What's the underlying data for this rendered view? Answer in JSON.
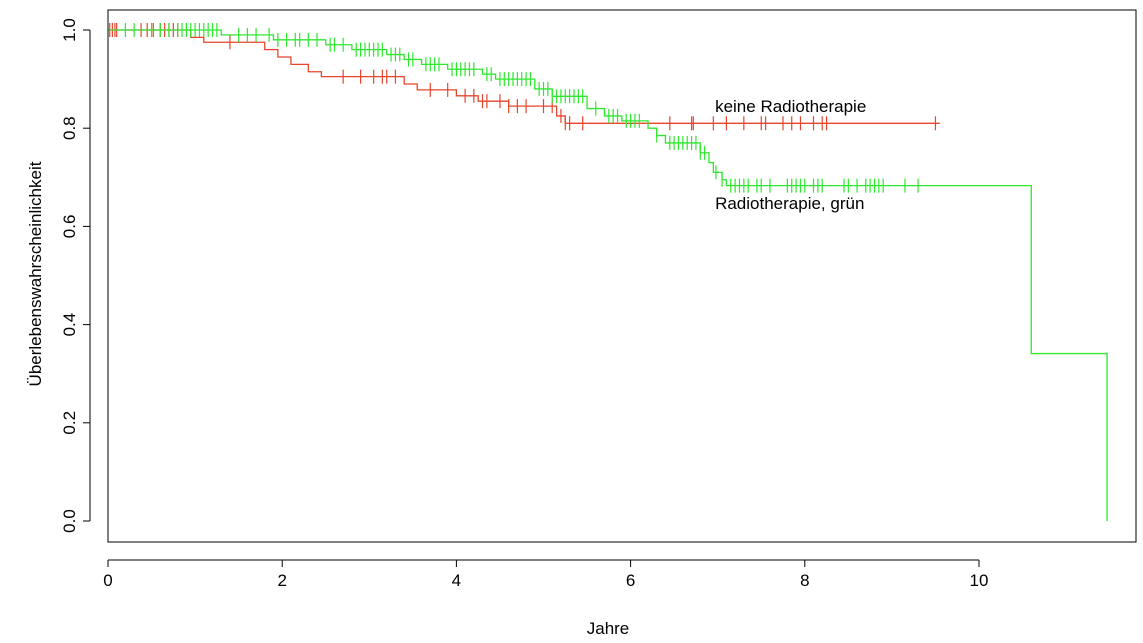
{
  "chart_data": {
    "type": "line",
    "title": "",
    "xlabel": "Jahre",
    "ylabel": "Überlebenswahrscheinlichkeit",
    "xlim": [
      0,
      11.7
    ],
    "ylim": [
      0,
      1.0
    ],
    "xticks": [
      0,
      2,
      4,
      6,
      8,
      10
    ],
    "xtick_labels": [
      "0",
      "2",
      "4",
      "6",
      "8",
      "10"
    ],
    "yticks": [
      0.0,
      0.2,
      0.4,
      0.6,
      0.8,
      1.0
    ],
    "ytick_labels": [
      "0.0",
      "0.2",
      "0.4",
      "0.6",
      "0.8",
      "1.0"
    ],
    "grid": false,
    "annotations": [
      {
        "text": "keine Radiotherapie",
        "x": 6.97,
        "y": 0.845
      },
      {
        "text": "Radiotherapie, grün",
        "x": 6.97,
        "y": 0.648
      }
    ],
    "series": [
      {
        "color": "#e8452c",
        "step": [
          [
            0,
            1.0
          ],
          [
            0.95,
            1.0
          ],
          [
            0.95,
            0.985
          ],
          [
            1.1,
            0.985
          ],
          [
            1.1,
            0.975
          ],
          [
            1.8,
            0.975
          ],
          [
            1.8,
            0.96
          ],
          [
            1.95,
            0.96
          ],
          [
            1.95,
            0.945
          ],
          [
            2.1,
            0.945
          ],
          [
            2.1,
            0.93
          ],
          [
            2.3,
            0.93
          ],
          [
            2.3,
            0.915
          ],
          [
            2.45,
            0.915
          ],
          [
            2.45,
            0.905
          ],
          [
            3.4,
            0.905
          ],
          [
            3.4,
            0.89
          ],
          [
            3.55,
            0.89
          ],
          [
            3.55,
            0.878
          ],
          [
            4.0,
            0.878
          ],
          [
            4.0,
            0.866
          ],
          [
            4.25,
            0.866
          ],
          [
            4.25,
            0.855
          ],
          [
            4.6,
            0.855
          ],
          [
            4.6,
            0.845
          ],
          [
            5.15,
            0.845
          ],
          [
            5.15,
            0.825
          ],
          [
            5.25,
            0.825
          ],
          [
            5.25,
            0.81
          ],
          [
            9.55,
            0.81
          ]
        ],
        "censor_x": [
          0.02,
          0.05,
          0.08,
          0.1,
          0.38,
          0.45,
          0.52,
          0.6,
          0.65,
          0.7,
          0.75,
          0.8,
          1.4,
          2.7,
          2.9,
          3.05,
          3.15,
          3.2,
          3.3,
          3.7,
          3.9,
          4.1,
          4.2,
          4.3,
          4.35,
          4.5,
          4.6,
          4.7,
          4.8,
          5.0,
          5.1,
          5.2,
          5.25,
          5.3,
          5.45,
          6.45,
          6.7,
          6.72,
          6.95,
          7.1,
          7.3,
          7.5,
          7.55,
          7.75,
          7.85,
          7.95,
          8.1,
          8.2,
          8.25,
          9.5
        ]
      },
      {
        "color": "#2ee82e",
        "step": [
          [
            0,
            1.0
          ],
          [
            1.3,
            1.0
          ],
          [
            1.3,
            0.99
          ],
          [
            1.9,
            0.99
          ],
          [
            1.9,
            0.98
          ],
          [
            2.5,
            0.98
          ],
          [
            2.5,
            0.97
          ],
          [
            2.8,
            0.97
          ],
          [
            2.8,
            0.96
          ],
          [
            3.2,
            0.96
          ],
          [
            3.2,
            0.95
          ],
          [
            3.4,
            0.95
          ],
          [
            3.4,
            0.94
          ],
          [
            3.6,
            0.94
          ],
          [
            3.6,
            0.93
          ],
          [
            3.9,
            0.93
          ],
          [
            3.9,
            0.92
          ],
          [
            4.3,
            0.92
          ],
          [
            4.3,
            0.91
          ],
          [
            4.45,
            0.91
          ],
          [
            4.45,
            0.9
          ],
          [
            4.9,
            0.9
          ],
          [
            4.9,
            0.88
          ],
          [
            5.1,
            0.88
          ],
          [
            5.1,
            0.865
          ],
          [
            5.5,
            0.865
          ],
          [
            5.5,
            0.84
          ],
          [
            5.7,
            0.84
          ],
          [
            5.7,
            0.825
          ],
          [
            5.9,
            0.825
          ],
          [
            5.9,
            0.815
          ],
          [
            6.2,
            0.815
          ],
          [
            6.2,
            0.8
          ],
          [
            6.3,
            0.8
          ],
          [
            6.3,
            0.785
          ],
          [
            6.4,
            0.785
          ],
          [
            6.4,
            0.77
          ],
          [
            6.8,
            0.77
          ],
          [
            6.8,
            0.75
          ],
          [
            6.9,
            0.75
          ],
          [
            6.9,
            0.73
          ],
          [
            6.95,
            0.73
          ],
          [
            6.95,
            0.71
          ],
          [
            7.05,
            0.71
          ],
          [
            7.05,
            0.695
          ],
          [
            7.1,
            0.695
          ],
          [
            7.1,
            0.683
          ],
          [
            10.6,
            0.683
          ],
          [
            10.6,
            0.341
          ],
          [
            11.47,
            0.341
          ],
          [
            11.47,
            0.0
          ]
        ],
        "censor_x": [
          0.2,
          0.3,
          0.5,
          0.6,
          0.7,
          0.8,
          0.85,
          0.9,
          0.95,
          1.0,
          1.05,
          1.1,
          1.15,
          1.2,
          1.25,
          1.5,
          1.6,
          1.7,
          1.85,
          1.95,
          2.05,
          2.15,
          2.2,
          2.3,
          2.4,
          2.55,
          2.6,
          2.7,
          2.85,
          2.9,
          2.95,
          3.0,
          3.05,
          3.1,
          3.15,
          3.25,
          3.3,
          3.35,
          3.45,
          3.5,
          3.65,
          3.7,
          3.75,
          3.8,
          3.95,
          4.0,
          4.05,
          4.1,
          4.15,
          4.2,
          4.35,
          4.4,
          4.5,
          4.55,
          4.6,
          4.65,
          4.7,
          4.75,
          4.8,
          4.85,
          4.95,
          5.0,
          5.05,
          5.1,
          5.15,
          5.2,
          5.25,
          5.3,
          5.35,
          5.4,
          5.45,
          5.6,
          5.75,
          5.8,
          5.85,
          5.95,
          6.0,
          6.05,
          6.1,
          6.3,
          6.45,
          6.5,
          6.55,
          6.6,
          6.65,
          6.7,
          6.75,
          6.8,
          6.85,
          6.98,
          7.05,
          7.15,
          7.2,
          7.25,
          7.3,
          7.35,
          7.45,
          7.5,
          7.6,
          7.8,
          7.85,
          7.9,
          7.95,
          8.0,
          8.1,
          8.15,
          8.2,
          8.45,
          8.5,
          8.6,
          8.7,
          8.75,
          8.8,
          8.85,
          8.9,
          9.15,
          9.3
        ]
      }
    ]
  }
}
